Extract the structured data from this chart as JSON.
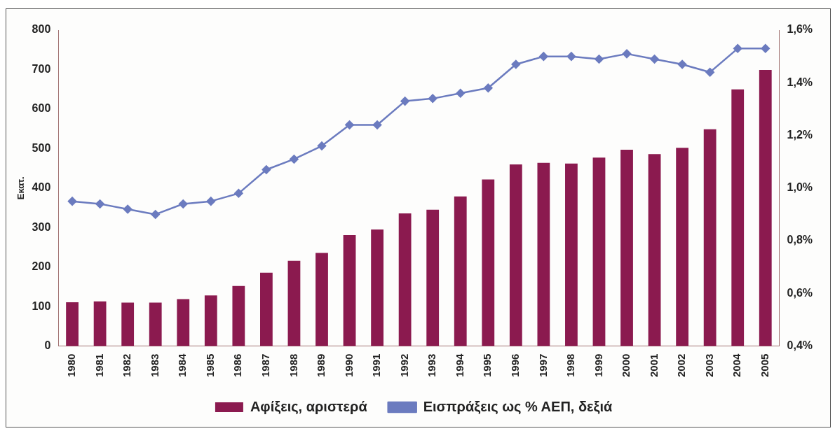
{
  "chart_data": {
    "type": "bar",
    "ylabel": "Εκατ.",
    "categories": [
      "1980",
      "1981",
      "1982",
      "1983",
      "1984",
      "1985",
      "1986",
      "1987",
      "1988",
      "1989",
      "1990",
      "1991",
      "1992",
      "1993",
      "1994",
      "1995",
      "1996",
      "1997",
      "1998",
      "1999",
      "2000",
      "2001",
      "2002",
      "2003",
      "2004",
      "2005"
    ],
    "series": [
      {
        "name": "Αφίξεις, αριστερά",
        "color": "#8b1a4f",
        "values": [
          111,
          113,
          110,
          110,
          119,
          128,
          152,
          186,
          216,
          236,
          281,
          295,
          336,
          345,
          379,
          422,
          460,
          464,
          462,
          477,
          497,
          486,
          502,
          549,
          650,
          699
        ]
      },
      {
        "name": "Εισπράξεις ως % ΑΕΠ, δεξιά",
        "type": "line",
        "axis": "y2",
        "color": "#6b7bbf",
        "marker": "diamond",
        "values": [
          0.95,
          0.94,
          0.92,
          0.9,
          0.94,
          0.95,
          0.98,
          1.07,
          1.11,
          1.16,
          1.24,
          1.24,
          1.33,
          1.34,
          1.36,
          1.38,
          1.47,
          1.5,
          1.5,
          1.49,
          1.51,
          1.49,
          1.47,
          1.44,
          1.53,
          1.53
        ]
      }
    ],
    "ylim": [
      0,
      800
    ],
    "yticks": [
      0,
      100,
      200,
      300,
      400,
      500,
      600,
      700,
      800
    ],
    "y2lim": [
      0.4,
      1.6
    ],
    "y2ticks": [
      {
        "value": 0.4,
        "label": "0,4%"
      },
      {
        "value": 0.6,
        "label": "0,6%"
      },
      {
        "value": 0.8,
        "label": "0,8%"
      },
      {
        "value": 1.0,
        "label": "1,0%"
      },
      {
        "value": 1.2,
        "label": "1,2%"
      },
      {
        "value": 1.4,
        "label": "1,4%"
      },
      {
        "value": 1.6,
        "label": "1,6%"
      }
    ],
    "grid": false,
    "legend": "bottom"
  }
}
